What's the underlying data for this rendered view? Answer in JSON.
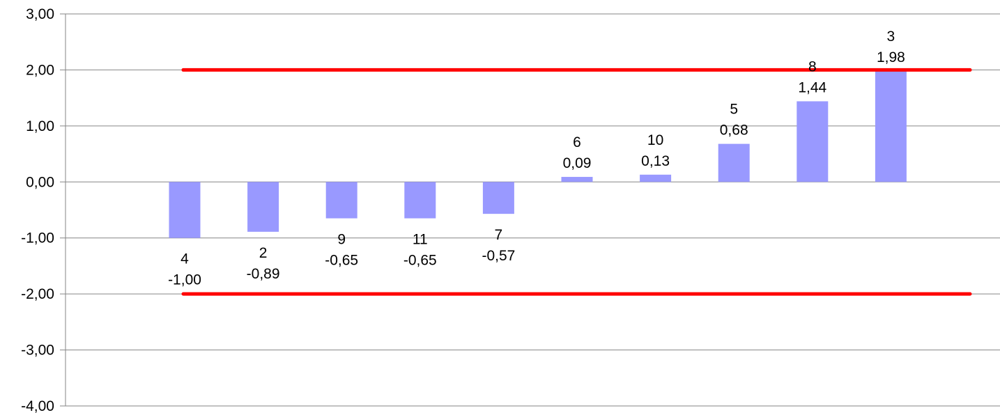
{
  "chart_data": {
    "type": "bar",
    "title": "",
    "xlabel": "",
    "ylabel": "",
    "ylim": [
      -4,
      3
    ],
    "y_ticks": [
      "3,00",
      "2,00",
      "1,00",
      "0,00",
      "-1,00",
      "-2,00",
      "-3,00",
      "-4,00"
    ],
    "y_tick_values": [
      3,
      2,
      1,
      0,
      -1,
      -2,
      -3,
      -4
    ],
    "grid": true,
    "legend": "none",
    "categories": [
      "4",
      "2",
      "9",
      "11",
      "7",
      "6",
      "10",
      "5",
      "8",
      "3"
    ],
    "series": [
      {
        "values": [
          -1.0,
          -0.89,
          -0.65,
          -0.65,
          -0.57,
          0.09,
          0.13,
          0.68,
          1.44,
          1.98
        ],
        "value_labels": [
          "-1,00",
          "-0,89",
          "-0,65",
          "-0,65",
          "-0,57",
          "0,09",
          "0,13",
          "0,68",
          "1,44",
          "1,98"
        ],
        "color": "#9999ff"
      }
    ],
    "reference_lines": [
      {
        "value": 2,
        "color": "#ff0000"
      },
      {
        "value": -2,
        "color": "#ff0000"
      }
    ],
    "colors": {
      "bar": "#9999ff",
      "reference": "#ff0000",
      "grid": "#868686",
      "axis": "#868686"
    }
  }
}
